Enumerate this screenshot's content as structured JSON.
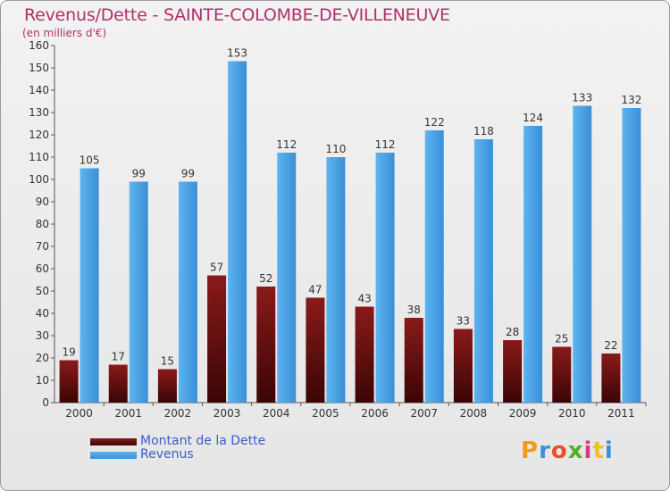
{
  "title": "Revenus/Dette - SAINTE-COLOMBE-DE-VILLENEUVE",
  "subtitle": "(en milliers d'€)",
  "logo": "Proxiti",
  "colors": {
    "dette": "#6b0f0f",
    "revenus": "#4aa3e6",
    "title": "#b0306a",
    "legend_text": "#3d5cc8"
  },
  "chart_data": {
    "type": "bar",
    "categories": [
      "2000",
      "2001",
      "2002",
      "2003",
      "2004",
      "2005",
      "2006",
      "2007",
      "2008",
      "2009",
      "2010",
      "2011"
    ],
    "series": [
      {
        "name": "Montant de la Dette",
        "values": [
          19,
          17,
          15,
          57,
          52,
          47,
          43,
          38,
          33,
          28,
          25,
          22
        ]
      },
      {
        "name": "Revenus",
        "values": [
          105,
          99,
          99,
          153,
          112,
          110,
          112,
          122,
          118,
          124,
          133,
          132
        ]
      }
    ],
    "ylim": [
      0,
      160
    ],
    "yticks": [
      0,
      10,
      20,
      30,
      40,
      50,
      60,
      70,
      80,
      90,
      100,
      110,
      120,
      130,
      140,
      150,
      160
    ],
    "grid": false,
    "legend_position": "bottom-left"
  }
}
